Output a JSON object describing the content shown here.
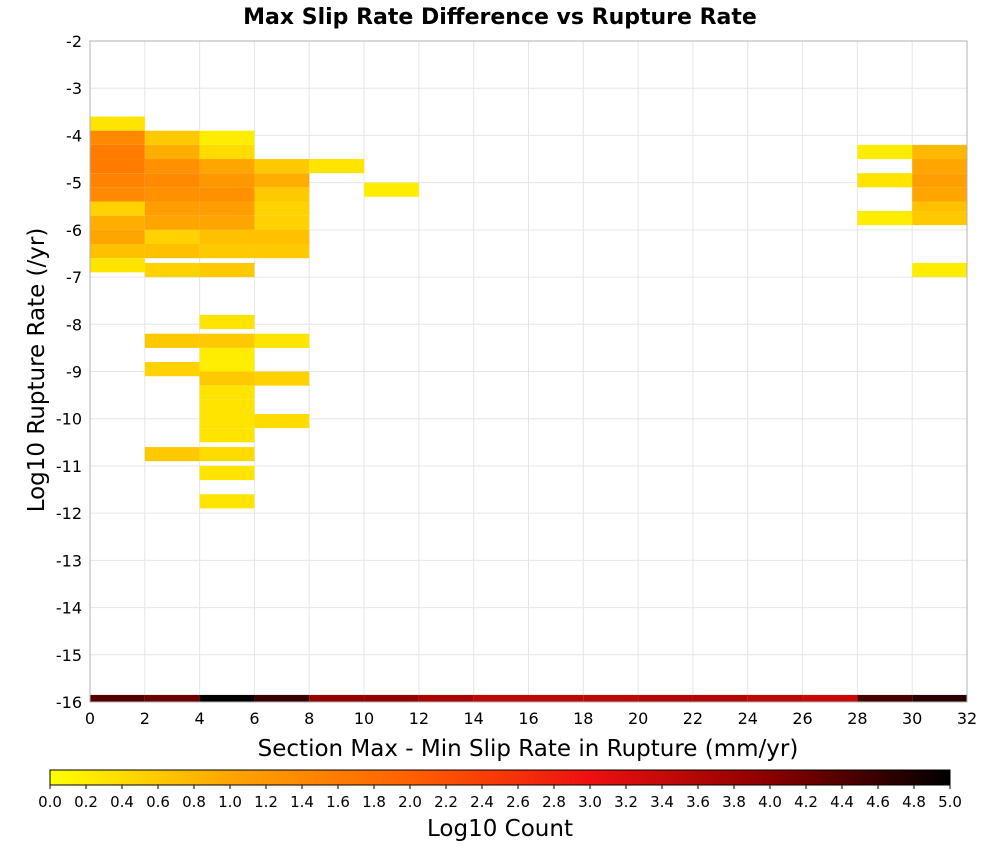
{
  "chart_data": {
    "type": "heatmap",
    "title": "Max Slip Rate Difference vs Rupture Rate",
    "xlabel": "Section Max - Min Slip Rate in Rupture (mm/yr)",
    "ylabel": "Log10 Rupture Rate (/yr)",
    "xlim": [
      0,
      32
    ],
    "ylim": [
      -16,
      -2
    ],
    "x_ticks": [
      "0",
      "2",
      "4",
      "6",
      "8",
      "10",
      "12",
      "14",
      "16",
      "18",
      "20",
      "22",
      "24",
      "26",
      "28",
      "30",
      "32"
    ],
    "y_ticks": [
      "-2",
      "-3",
      "-4",
      "-5",
      "-6",
      "-7",
      "-8",
      "-9",
      "-10",
      "-11",
      "-12",
      "-13",
      "-14",
      "-15",
      "-16"
    ],
    "grid": true,
    "x_bin_width": 2,
    "y_bin_height": 0.3,
    "colorbar": {
      "label": "Log10 Count",
      "min": 0.0,
      "max": 5.0,
      "ticks": [
        "0.0",
        "0.2",
        "0.4",
        "0.6",
        "0.8",
        "1.0",
        "1.2",
        "1.4",
        "1.6",
        "1.8",
        "2.0",
        "2.2",
        "2.4",
        "2.6",
        "2.8",
        "3.0",
        "3.2",
        "3.4",
        "3.6",
        "3.8",
        "4.0",
        "4.2",
        "4.4",
        "4.6",
        "4.8",
        "5.0"
      ],
      "colors": [
        "#ffff00",
        "#ffa500",
        "#ff6000",
        "#ee1010",
        "#8b0000",
        "#000000"
      ]
    },
    "cells": [
      {
        "x0": 0,
        "y0": -3.9,
        "v": 0.3
      },
      {
        "x0": 0,
        "y0": -4.2,
        "v": 1.4
      },
      {
        "x0": 0,
        "y0": -4.5,
        "v": 1.6
      },
      {
        "x0": 0,
        "y0": -4.8,
        "v": 1.6
      },
      {
        "x0": 0,
        "y0": -5.1,
        "v": 1.5
      },
      {
        "x0": 0,
        "y0": -5.4,
        "v": 1.4
      },
      {
        "x0": 0,
        "y0": -5.7,
        "v": 0.5
      },
      {
        "x0": 0,
        "y0": -6.0,
        "v": 0.9
      },
      {
        "x0": 0,
        "y0": -6.3,
        "v": 1.0
      },
      {
        "x0": 0,
        "y0": -6.6,
        "v": 0.7
      },
      {
        "x0": 0,
        "y0": -6.9,
        "v": 0.3
      },
      {
        "x0": 2,
        "y0": -4.2,
        "v": 0.6
      },
      {
        "x0": 2,
        "y0": -4.5,
        "v": 0.9
      },
      {
        "x0": 2,
        "y0": -4.8,
        "v": 1.3
      },
      {
        "x0": 2,
        "y0": -5.1,
        "v": 1.4
      },
      {
        "x0": 2,
        "y0": -5.4,
        "v": 1.3
      },
      {
        "x0": 2,
        "y0": -5.7,
        "v": 1.1
      },
      {
        "x0": 2,
        "y0": -6.0,
        "v": 1.0
      },
      {
        "x0": 2,
        "y0": -6.3,
        "v": 0.5
      },
      {
        "x0": 2,
        "y0": -6.6,
        "v": 0.7
      },
      {
        "x0": 2,
        "y0": -7.0,
        "v": 0.5
      },
      {
        "x0": 2,
        "y0": -8.5,
        "v": 0.6
      },
      {
        "x0": 2,
        "y0": -9.1,
        "v": 0.5
      },
      {
        "x0": 2,
        "y0": -10.9,
        "v": 0.6
      },
      {
        "x0": 4,
        "y0": -4.2,
        "v": 0.2
      },
      {
        "x0": 4,
        "y0": -4.5,
        "v": 0.4
      },
      {
        "x0": 4,
        "y0": -4.8,
        "v": 1.0
      },
      {
        "x0": 4,
        "y0": -5.1,
        "v": 1.2
      },
      {
        "x0": 4,
        "y0": -5.4,
        "v": 1.3
      },
      {
        "x0": 4,
        "y0": -5.7,
        "v": 1.1
      },
      {
        "x0": 4,
        "y0": -6.0,
        "v": 1.0
      },
      {
        "x0": 4,
        "y0": -6.3,
        "v": 0.7
      },
      {
        "x0": 4,
        "y0": -6.6,
        "v": 0.6
      },
      {
        "x0": 4,
        "y0": -7.0,
        "v": 0.6
      },
      {
        "x0": 4,
        "y0": -8.1,
        "v": 0.3
      },
      {
        "x0": 4,
        "y0": -8.5,
        "v": 0.6
      },
      {
        "x0": 4,
        "y0": -8.8,
        "v": 0.2
      },
      {
        "x0": 4,
        "y0": -9.1,
        "v": 0.2
      },
      {
        "x0": 4,
        "y0": -9.3,
        "v": 0.6
      },
      {
        "x0": 4,
        "y0": -9.6,
        "v": 0.3
      },
      {
        "x0": 4,
        "y0": -9.9,
        "v": 0.3
      },
      {
        "x0": 4,
        "y0": -10.2,
        "v": 0.3
      },
      {
        "x0": 4,
        "y0": -10.5,
        "v": 0.3
      },
      {
        "x0": 4,
        "y0": -10.9,
        "v": 0.4
      },
      {
        "x0": 4,
        "y0": -11.3,
        "v": 0.3
      },
      {
        "x0": 4,
        "y0": -11.9,
        "v": 0.3
      },
      {
        "x0": 6,
        "y0": -4.8,
        "v": 0.6
      },
      {
        "x0": 6,
        "y0": -5.1,
        "v": 0.9
      },
      {
        "x0": 6,
        "y0": -5.4,
        "v": 0.6
      },
      {
        "x0": 6,
        "y0": -5.7,
        "v": 0.5
      },
      {
        "x0": 6,
        "y0": -6.0,
        "v": 0.5
      },
      {
        "x0": 6,
        "y0": -6.3,
        "v": 0.7
      },
      {
        "x0": 6,
        "y0": -6.6,
        "v": 0.6
      },
      {
        "x0": 6,
        "y0": -8.5,
        "v": 0.3
      },
      {
        "x0": 6,
        "y0": -9.3,
        "v": 0.5
      },
      {
        "x0": 6,
        "y0": -10.2,
        "v": 0.4
      },
      {
        "x0": 8,
        "y0": -4.8,
        "v": 0.3
      },
      {
        "x0": 10,
        "y0": -5.3,
        "v": 0.2
      },
      {
        "x0": 28,
        "y0": -4.5,
        "v": 0.2
      },
      {
        "x0": 28,
        "y0": -5.1,
        "v": 0.3
      },
      {
        "x0": 28,
        "y0": -5.9,
        "v": 0.2
      },
      {
        "x0": 30,
        "y0": -4.5,
        "v": 0.8
      },
      {
        "x0": 30,
        "y0": -4.8,
        "v": 1.0
      },
      {
        "x0": 30,
        "y0": -5.1,
        "v": 1.1
      },
      {
        "x0": 30,
        "y0": -5.4,
        "v": 1.0
      },
      {
        "x0": 30,
        "y0": -5.7,
        "v": 0.7
      },
      {
        "x0": 30,
        "y0": -5.9,
        "v": 0.6
      },
      {
        "x0": 30,
        "y0": -7.0,
        "v": 0.2
      }
    ],
    "marginal_row": {
      "y0": -16,
      "values": [
        4.4,
        4.2,
        5.0,
        4.6,
        3.9,
        3.9,
        3.7,
        3.5,
        3.5,
        3.5,
        3.6,
        3.6,
        3.5,
        3.4,
        4.5,
        4.7
      ]
    }
  }
}
